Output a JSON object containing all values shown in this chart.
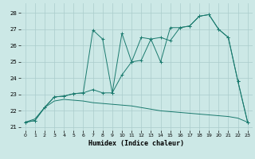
{
  "xlabel": "Humidex (Indice chaleur)",
  "bg_color": "#cce8e6",
  "grid_color": "#aacccc",
  "line_color": "#1a7a6e",
  "xlim": [
    -0.5,
    23.5
  ],
  "ylim": [
    20.8,
    28.6
  ],
  "yticks": [
    21,
    22,
    23,
    24,
    25,
    26,
    27,
    28
  ],
  "xticks": [
    0,
    1,
    2,
    3,
    4,
    5,
    6,
    7,
    8,
    9,
    10,
    11,
    12,
    13,
    14,
    15,
    16,
    17,
    18,
    19,
    20,
    21,
    22,
    23
  ],
  "s1x": [
    0,
    1,
    2,
    3,
    4,
    5,
    6,
    7,
    8,
    9,
    10,
    11,
    12,
    13,
    14,
    15,
    16,
    17,
    18,
    19,
    20,
    21,
    22,
    23
  ],
  "s1y": [
    21.3,
    21.4,
    22.2,
    22.85,
    22.9,
    23.05,
    23.1,
    23.3,
    23.1,
    23.1,
    24.2,
    25.0,
    25.1,
    26.4,
    26.5,
    26.3,
    27.1,
    27.2,
    27.8,
    27.9,
    27.0,
    26.5,
    23.8,
    21.3
  ],
  "s2x": [
    0,
    1,
    2,
    3,
    4,
    5,
    6,
    7,
    8,
    9,
    10,
    11,
    12,
    13,
    14,
    15,
    16,
    17,
    18,
    19,
    20,
    21,
    22,
    23
  ],
  "s2y": [
    21.3,
    21.4,
    22.2,
    22.85,
    22.9,
    23.05,
    23.1,
    26.95,
    26.4,
    23.1,
    26.75,
    25.0,
    26.5,
    26.4,
    25.0,
    27.1,
    27.1,
    27.2,
    27.8,
    27.9,
    27.0,
    26.5,
    23.8,
    21.3
  ],
  "s3x": [
    0,
    1,
    2,
    3,
    4,
    5,
    6,
    7,
    8,
    9,
    10,
    11,
    12,
    13,
    14,
    15,
    16,
    17,
    18,
    19,
    20,
    21,
    22,
    23
  ],
  "s3y": [
    21.3,
    21.5,
    22.2,
    22.6,
    22.7,
    22.65,
    22.6,
    22.5,
    22.45,
    22.4,
    22.35,
    22.3,
    22.2,
    22.1,
    22.0,
    21.95,
    21.9,
    21.85,
    21.8,
    21.75,
    21.7,
    21.65,
    21.55,
    21.3
  ]
}
